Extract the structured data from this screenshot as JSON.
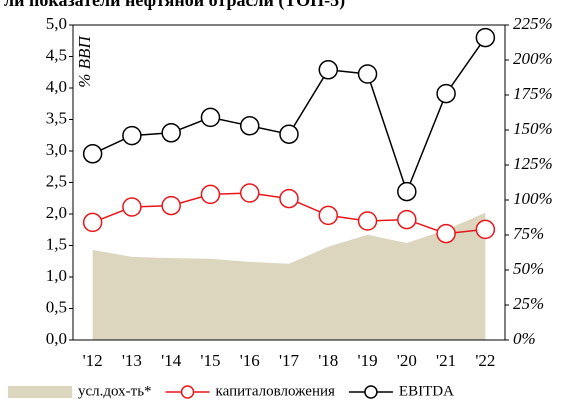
{
  "chart_data": {
    "type": "line",
    "title": "ли показатели нефтяной отрасли (ТОП-5)",
    "y_label": "% ВВП",
    "categories": [
      "'12",
      "'13",
      "'14",
      "'15",
      "'16",
      "'17",
      "'18",
      "'19",
      "'20",
      "'21",
      "'22"
    ],
    "series": [
      {
        "name": "усл.дох-ть*",
        "kind": "area",
        "color": "#ddd6bf",
        "values": [
          1.43,
          1.32,
          1.3,
          1.29,
          1.24,
          1.21,
          1.48,
          1.67,
          1.54,
          1.75,
          2.02
        ]
      },
      {
        "name": "капиталовложения",
        "kind": "line",
        "axis": "y2",
        "color": "#e8151b",
        "values": [
          84,
          95,
          96,
          104,
          105,
          101,
          89,
          85,
          86,
          76,
          79
        ]
      },
      {
        "name": "EBITDA",
        "kind": "line",
        "axis": "y2",
        "color": "#000000",
        "values": [
          133,
          146,
          148,
          159,
          153,
          147,
          193,
          190,
          106,
          176,
          216
        ]
      }
    ],
    "ylim": [
      0,
      5
    ],
    "yticks": [
      {
        "value": 0,
        "label": "0,0"
      },
      {
        "value": 0.5,
        "label": "0,5"
      },
      {
        "value": 1,
        "label": "1,0"
      },
      {
        "value": 1.5,
        "label": "1,5"
      },
      {
        "value": 2,
        "label": "2,0"
      },
      {
        "value": 2.5,
        "label": "2,5"
      },
      {
        "value": 3,
        "label": "3,0"
      },
      {
        "value": 3.5,
        "label": "3,5"
      },
      {
        "value": 4,
        "label": "4,0"
      },
      {
        "value": 4.5,
        "label": "4,5"
      },
      {
        "value": 5,
        "label": "5,0"
      }
    ],
    "y2lim": [
      0,
      225
    ],
    "y2ticks": [
      {
        "value": 0,
        "label": "0%"
      },
      {
        "value": 25,
        "label": "25%"
      },
      {
        "value": 50,
        "label": "50%"
      },
      {
        "value": 75,
        "label": "75%"
      },
      {
        "value": 100,
        "label": "100%"
      },
      {
        "value": 125,
        "label": "125%"
      },
      {
        "value": 150,
        "label": "150%"
      },
      {
        "value": 175,
        "label": "175%"
      },
      {
        "value": 200,
        "label": "200%"
      },
      {
        "value": 225,
        "label": "225%"
      }
    ]
  }
}
